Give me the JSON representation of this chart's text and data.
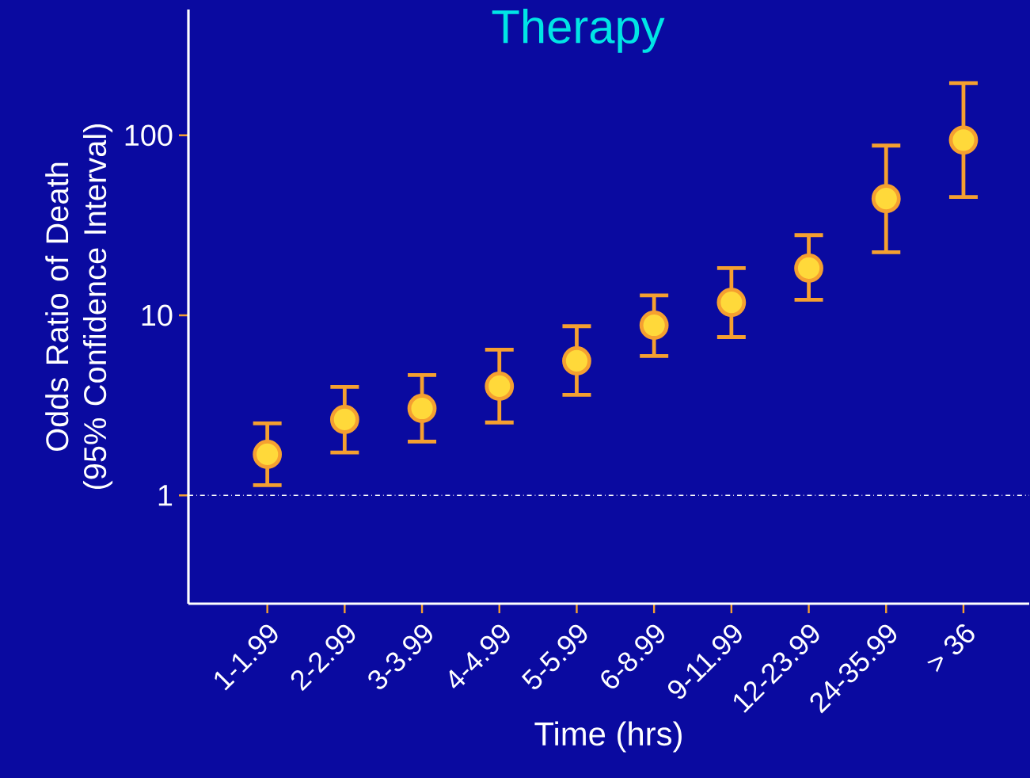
{
  "chart_data": {
    "type": "scatter",
    "title": "Therapy",
    "xlabel": "Time (hrs)",
    "ylabel": "Odds Ratio of Death (95% Confidence Interval)",
    "categories": [
      "1-1.99",
      "2-2.99",
      "3-3.99",
      "4-4.99",
      "5-5.99",
      "6-8.99",
      "9-11.99",
      "12-23.99",
      "24-35.99",
      "> 36"
    ],
    "values": [
      1.69,
      2.64,
      3.04,
      4.04,
      5.59,
      8.81,
      11.8,
      18.3,
      44.5,
      94.1
    ],
    "errors": [
      [
        1.14,
        2.51
      ],
      [
        1.73,
        4.0
      ],
      [
        1.99,
        4.66
      ],
      [
        2.54,
        6.44
      ],
      [
        3.62,
        8.7
      ],
      [
        5.94,
        12.9
      ],
      [
        7.57,
        18.3
      ],
      [
        12.2,
        27.9
      ],
      [
        22.4,
        87.7
      ],
      [
        45.4,
        195
      ]
    ],
    "color": "#ffd93a",
    "log": "y",
    "ylim": [
      0.25,
      500
    ],
    "yticks": [
      1,
      10,
      100
    ],
    "ref_lines": [
      {
        "axis": "y",
        "value": 1,
        "label": null,
        "color": "#ffffff",
        "line_style": "dashdotted"
      }
    ]
  }
}
